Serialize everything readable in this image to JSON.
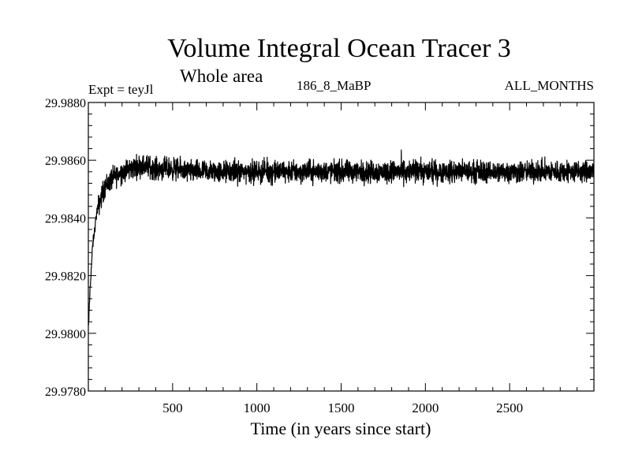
{
  "chart_data": {
    "type": "line",
    "title": "Volume Integral Ocean Tracer 3",
    "subtitle": "Whole area",
    "annotations": {
      "left": "Expt = teyJl",
      "center": "186_8_MaBP",
      "right": "ALL_MONTHS"
    },
    "xlabel": "Time (in years since start)",
    "ylabel": "",
    "xlim": [
      0,
      3000
    ],
    "ylim": [
      29.978,
      29.988
    ],
    "x_ticks": [
      500,
      1000,
      1500,
      2000,
      2500
    ],
    "x_tick_labels": [
      "500",
      "1000",
      "1500",
      "2000",
      "2500"
    ],
    "y_ticks": [
      29.978,
      29.98,
      29.982,
      29.984,
      29.986,
      29.988
    ],
    "y_tick_labels": [
      "29.9780",
      "29.9800",
      "29.9820",
      "29.9840",
      "29.9860",
      "29.9880"
    ],
    "grid": false,
    "series": [
      {
        "color": "#000000",
        "x": [
          0,
          10,
          25,
          50,
          75,
          100,
          150,
          200,
          250,
          300,
          350,
          400,
          500,
          600,
          700,
          800,
          900,
          1000,
          1100,
          1200,
          1300,
          1400,
          1500,
          1600,
          1700,
          1800,
          1900,
          2000,
          2100,
          2200,
          2300,
          2400,
          2500,
          2600,
          2700,
          2800,
          2900,
          3000
        ],
        "y": [
          29.9801,
          29.9815,
          29.983,
          29.9842,
          29.9847,
          29.9851,
          29.9854,
          29.9856,
          29.9857,
          29.9858,
          29.9858,
          29.9857,
          29.9857,
          29.9856,
          29.9856,
          29.9856,
          29.9856,
          29.9856,
          29.9856,
          29.9856,
          29.9856,
          29.9856,
          29.9856,
          29.9856,
          29.9856,
          29.9856,
          29.9856,
          29.9856,
          29.9856,
          29.9856,
          29.9856,
          29.9856,
          29.9856,
          29.9856,
          29.9856,
          29.9856,
          29.9856,
          29.9856
        ]
      }
    ]
  }
}
